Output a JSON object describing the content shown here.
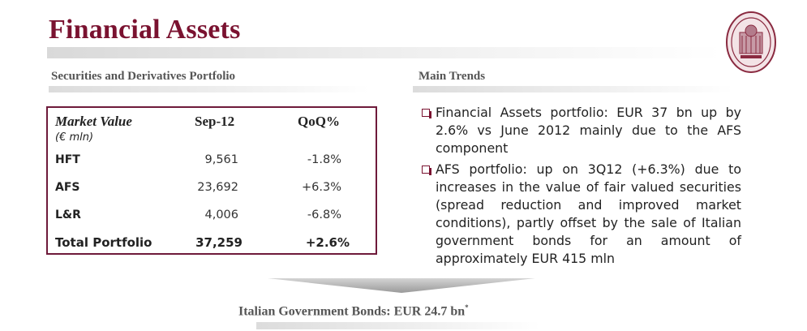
{
  "title": "Financial Assets",
  "left_section": {
    "heading": "Securities and Derivatives Portfolio"
  },
  "right_section": {
    "heading": "Main Trends"
  },
  "table": {
    "header": {
      "col1": "Market Value",
      "col1_unit": "(€ mln)",
      "col2": "Sep-12",
      "col3": "QoQ%"
    },
    "rows": [
      {
        "label": "HFT",
        "value": "9,561",
        "qoq": "-1.8%"
      },
      {
        "label": "AFS",
        "value": "23,692",
        "qoq": "+6.3%"
      },
      {
        "label": "L&R",
        "value": "4,006",
        "qoq": "-6.8%"
      }
    ],
    "total": {
      "label": "Total Portfolio",
      "value": "37,259",
      "qoq": "+2.6%"
    }
  },
  "trends": [
    "Financial Assets portfolio: EUR 37 bn up by 2.6% vs June 2012 mainly due to the AFS component",
    "AFS portfolio: up on 3Q12 (+6.3%) due to increases in the value of fair valued securities (spread reduction and improved market conditions), partly offset by the sale of Italian government bonds for an amount of approximately EUR 415 mln"
  ],
  "bottom": {
    "text": "Italian Government Bonds: EUR 24.7 bn",
    "marker": "*"
  },
  "colors": {
    "brand": "#7a1230",
    "heading_gray": "#555555"
  },
  "icons": {
    "logo": "bank-seal-logo",
    "bullet": "square-bullet-icon",
    "arrow": "down-chevron-arrow"
  }
}
